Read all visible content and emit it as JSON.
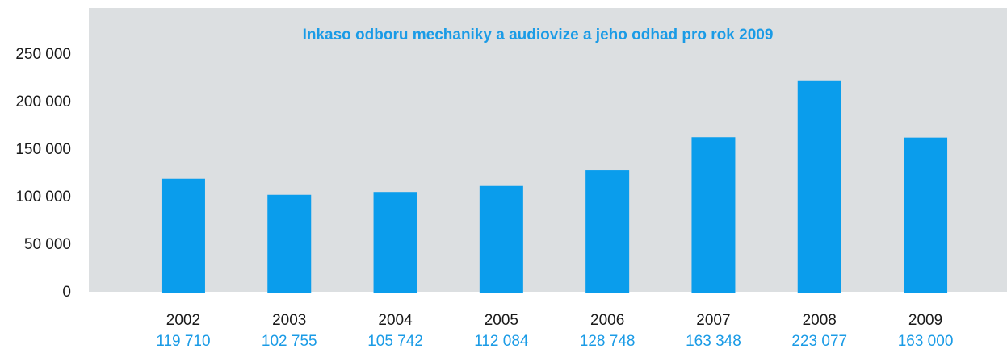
{
  "chart_data": {
    "type": "bar",
    "title": "Inkaso odboru mechaniky a audiovize a jeho odhad pro rok 2009",
    "categories": [
      "2002",
      "2003",
      "2004",
      "2005",
      "2006",
      "2007",
      "2008",
      "2009"
    ],
    "values": [
      119710,
      102755,
      105742,
      112084,
      128748,
      163348,
      223077,
      163000
    ],
    "value_labels": [
      "119 710",
      "102 755",
      "105 742",
      "112 084",
      "128 748",
      "163 348",
      "223 077",
      "163 000"
    ],
    "color": "#0a9dec",
    "ylim": [
      0,
      250000
    ],
    "yticks": [
      0,
      {
        "value": 50000,
        "label": "50 000"
      },
      {
        "value": 100000,
        "label": "100 000"
      },
      {
        "value": 150000,
        "label": "150 000"
      },
      {
        "value": 200000,
        "label": "200 000"
      },
      {
        "value": 250000,
        "label": "250 000"
      }
    ],
    "grid": false
  }
}
